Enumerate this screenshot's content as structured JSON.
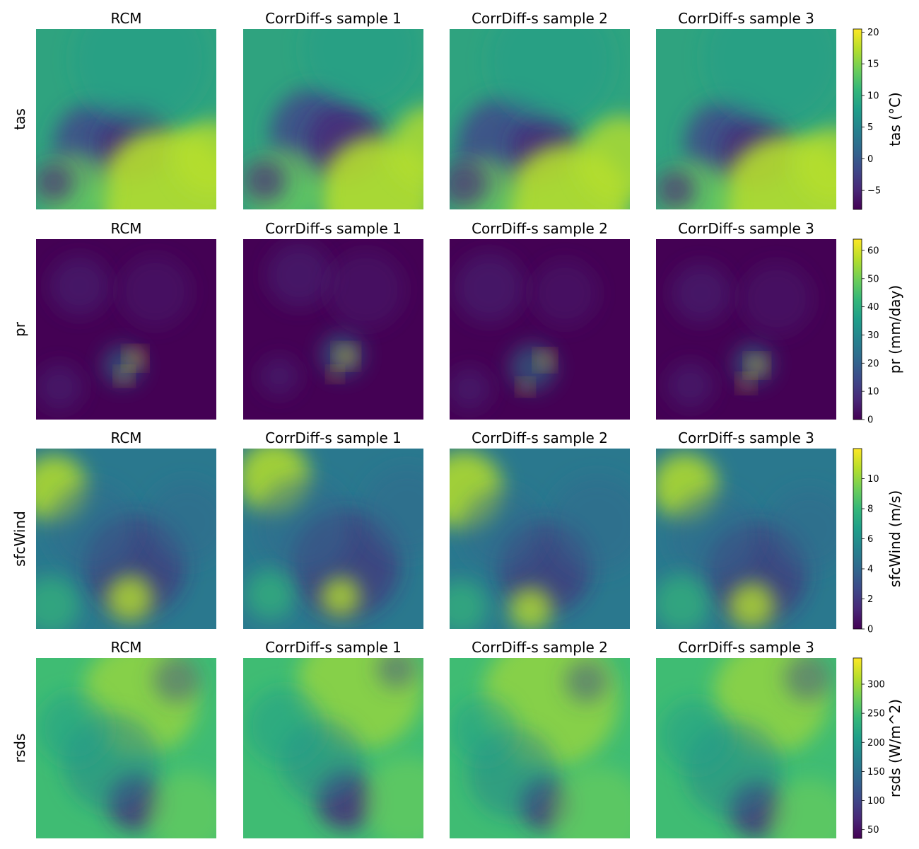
{
  "figure": {
    "column_titles": [
      "RCM",
      "CorrDiff-s sample 1",
      "CorrDiff-s sample 2",
      "CorrDiff-s sample 3"
    ],
    "colormap": "viridis"
  },
  "chart_data": {
    "type": "heatmap",
    "rows": [
      {
        "variable": "tas",
        "colorbar_label": "tas (°C)",
        "clim": [
          -8,
          20.5
        ],
        "ticks": [
          -5,
          0,
          5,
          10,
          15,
          20
        ],
        "tick_labels": [
          "−5",
          "0",
          "5",
          "10",
          "15",
          "20"
        ],
        "fields": [
          "Alpine ridge cold, warm Po valley and plains",
          "similar",
          "warmer southeast",
          "similar"
        ]
      },
      {
        "variable": "pr",
        "colorbar_label": "pr (mm/day)",
        "clim": [
          0,
          64
        ],
        "ticks": [
          0,
          10,
          20,
          30,
          40,
          50,
          60
        ],
        "tick_labels": [
          "0",
          "10",
          "20",
          "30",
          "40",
          "50",
          "60"
        ],
        "fields": [
          "Alpine convective cells",
          "strong Alpine cells",
          "weak Alpine cells",
          "moderate Alpine cells"
        ]
      },
      {
        "variable": "sfcWind",
        "colorbar_label": "sfcWind (m/s)",
        "clim": [
          0,
          12
        ],
        "ticks": [
          0,
          2,
          4,
          6,
          8,
          10
        ],
        "tick_labels": [
          "0",
          "2",
          "4",
          "6",
          "8",
          "10"
        ],
        "fields": [
          "strong NW winds",
          "strong N winds",
          "moderate",
          "strong NE and S winds"
        ]
      },
      {
        "variable": "rsds",
        "colorbar_label": "rsds (W/m^2)",
        "clim": [
          35,
          345
        ],
        "ticks": [
          50,
          100,
          150,
          200,
          250,
          300
        ],
        "tick_labels": [
          "50",
          "100",
          "150",
          "200",
          "250",
          "300"
        ],
        "fields": [
          "bright south and NE",
          "bright NE",
          "mixed",
          "cloudy north"
        ]
      }
    ]
  }
}
